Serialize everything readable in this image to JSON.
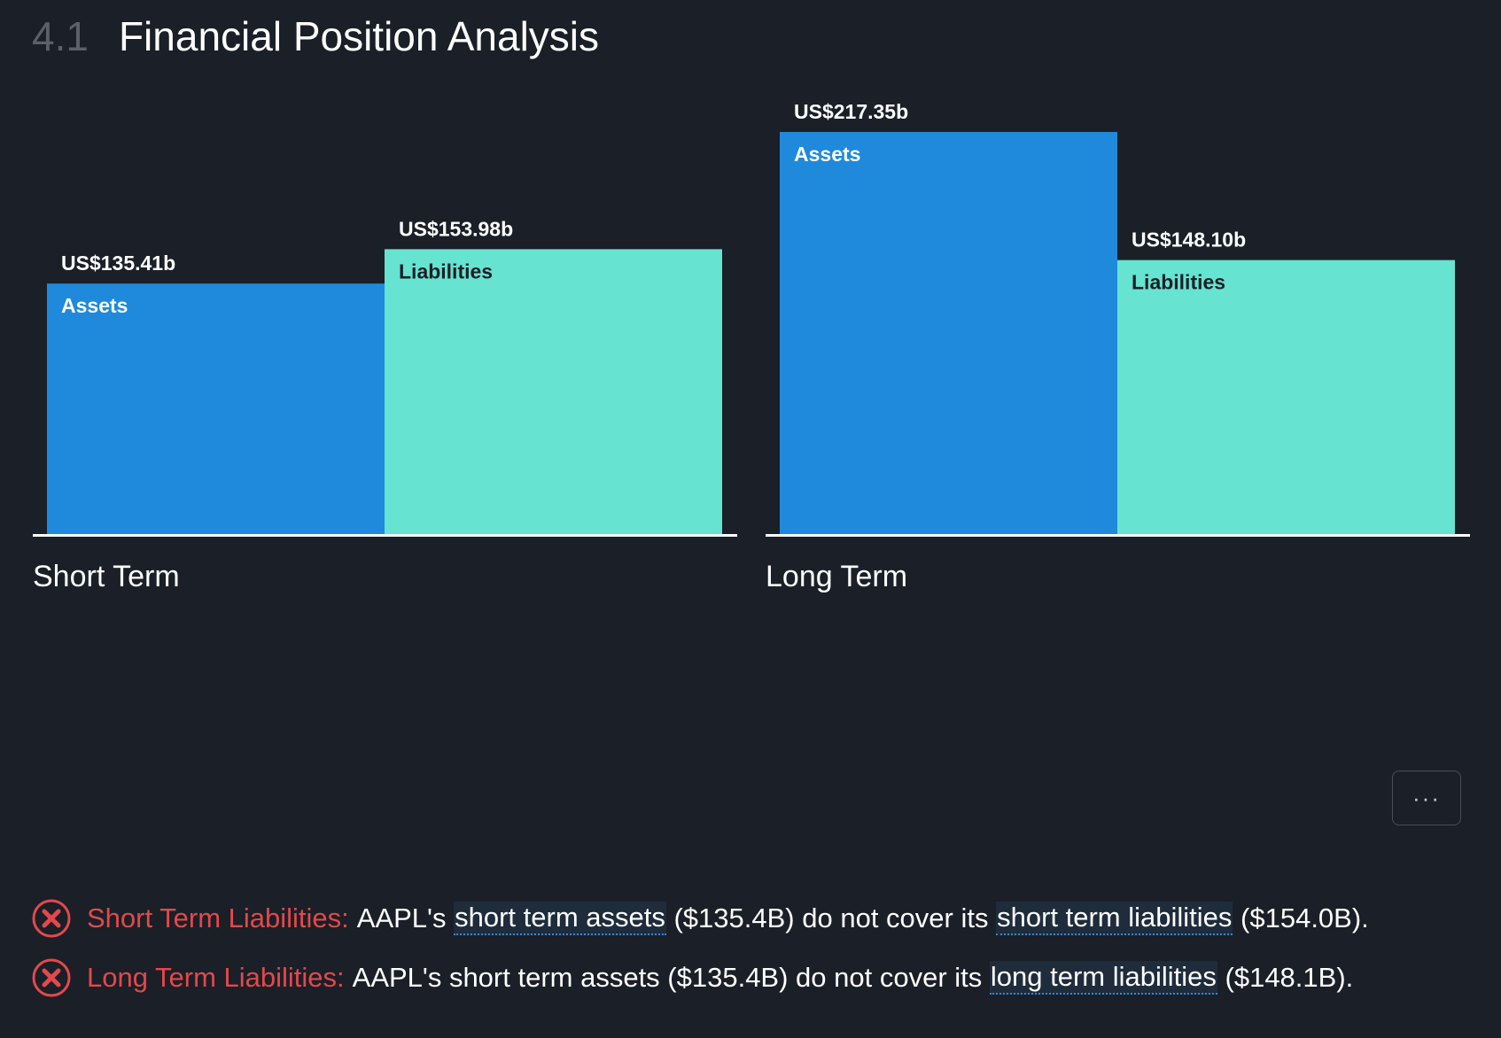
{
  "section": {
    "number": "4.1",
    "title": "Financial Position Analysis"
  },
  "chart_data": {
    "type": "bar",
    "categories": [
      "Short Term",
      "Long Term"
    ],
    "series": [
      {
        "name": "Assets",
        "values": [
          135.41,
          217.35
        ],
        "labels": [
          "US$135.41b",
          "US$217.35b"
        ],
        "color": "#1f8adb",
        "text_color": "#ffffff"
      },
      {
        "name": "Liabilities",
        "values": [
          153.98,
          148.1
        ],
        "labels": [
          "US$153.98b",
          "US$148.10b"
        ],
        "color": "#66e3d1",
        "text_color": "#1b1f27"
      }
    ],
    "unit": "US$ billions",
    "ylim": [
      0,
      217.35
    ],
    "legend": "none",
    "grid": false
  },
  "more_button": {
    "icon": "ellipsis-icon",
    "label": "···"
  },
  "checks": [
    {
      "status": "fail",
      "icon": "fail-x-icon",
      "label": "Short Term Liabilities:",
      "text_1": "AAPL's",
      "term_1": "short term assets",
      "text_2": "($135.4B) do not cover its",
      "term_2": "short term liabilities",
      "text_3": "($154.0B)."
    },
    {
      "status": "fail",
      "icon": "fail-x-icon",
      "label": "Long Term Liabilities:",
      "text_1": "AAPL's short term assets ($135.4B) do not cover its",
      "term_1": "long term liabilities",
      "text_2": "($148.1B)."
    }
  ],
  "colors": {
    "background": "#1b1f27",
    "fail": "#e2494c",
    "assets": "#1f8adb",
    "liabilities": "#66e3d1"
  }
}
